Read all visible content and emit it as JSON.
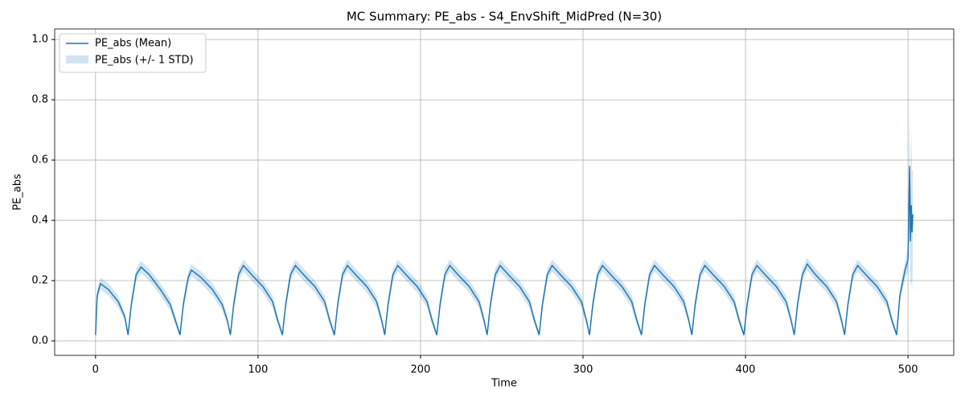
{
  "chart_data": {
    "type": "line",
    "title": "MC Summary: PE_abs - S4_EnvShift_MidPred (N=30)",
    "x_label": "Time",
    "y_label": "PE_abs",
    "x": [
      0,
      1,
      3,
      8,
      14,
      18,
      20,
      22,
      25,
      28,
      33,
      40,
      46,
      49,
      52,
      54,
      57,
      59,
      65,
      72,
      78,
      81,
      83,
      85,
      88,
      91,
      96,
      103,
      109,
      112,
      115,
      117,
      120,
      123,
      128,
      135,
      141,
      144,
      147,
      149,
      152,
      155,
      160,
      167,
      173,
      176,
      178,
      180,
      183,
      186,
      191,
      198,
      204,
      207,
      210,
      212,
      215,
      218,
      223,
      230,
      236,
      239,
      241,
      243,
      246,
      249,
      254,
      261,
      267,
      270,
      273,
      275,
      278,
      281,
      286,
      293,
      299,
      302,
      304,
      306,
      309,
      312,
      317,
      324,
      330,
      333,
      336,
      338,
      341,
      344,
      349,
      356,
      362,
      365,
      367,
      369,
      372,
      375,
      380,
      387,
      393,
      396,
      399,
      401,
      404,
      407,
      412,
      419,
      425,
      428,
      430,
      432,
      435,
      438,
      443,
      450,
      456,
      459,
      461,
      463,
      466,
      469,
      474,
      481,
      487,
      490,
      493,
      495,
      498,
      500,
      501,
      501.5,
      502,
      502.5,
      503
    ],
    "series": [
      {
        "name": "PE_abs (Mean)",
        "color": "#1f77b4",
        "values": [
          0.02,
          0.15,
          0.19,
          0.17,
          0.13,
          0.08,
          0.02,
          0.12,
          0.22,
          0.245,
          0.22,
          0.17,
          0.12,
          0.07,
          0.02,
          0.12,
          0.21,
          0.235,
          0.21,
          0.17,
          0.12,
          0.07,
          0.02,
          0.12,
          0.22,
          0.25,
          0.22,
          0.18,
          0.13,
          0.07,
          0.02,
          0.12,
          0.22,
          0.25,
          0.22,
          0.18,
          0.13,
          0.07,
          0.02,
          0.12,
          0.22,
          0.25,
          0.22,
          0.18,
          0.13,
          0.07,
          0.02,
          0.12,
          0.22,
          0.25,
          0.22,
          0.18,
          0.13,
          0.07,
          0.02,
          0.12,
          0.22,
          0.25,
          0.22,
          0.18,
          0.13,
          0.07,
          0.02,
          0.12,
          0.22,
          0.25,
          0.22,
          0.18,
          0.13,
          0.07,
          0.02,
          0.12,
          0.22,
          0.25,
          0.22,
          0.18,
          0.13,
          0.07,
          0.02,
          0.12,
          0.22,
          0.25,
          0.22,
          0.18,
          0.13,
          0.07,
          0.02,
          0.12,
          0.22,
          0.25,
          0.22,
          0.18,
          0.13,
          0.07,
          0.02,
          0.12,
          0.22,
          0.25,
          0.22,
          0.18,
          0.13,
          0.07,
          0.02,
          0.12,
          0.22,
          0.25,
          0.22,
          0.18,
          0.13,
          0.07,
          0.02,
          0.12,
          0.22,
          0.255,
          0.22,
          0.18,
          0.13,
          0.07,
          0.02,
          0.12,
          0.22,
          0.25,
          0.22,
          0.18,
          0.13,
          0.07,
          0.02,
          0.15,
          0.23,
          0.27,
          0.58,
          0.33,
          0.45,
          0.36,
          0.42
        ]
      },
      {
        "name": "PE_abs (+/- 1 STD)",
        "color": "#1f77b4",
        "values": [
          0.01,
          0.02,
          0.02,
          0.02,
          0.02,
          0.015,
          0.01,
          0.02,
          0.02,
          0.02,
          0.02,
          0.02,
          0.02,
          0.015,
          0.01,
          0.02,
          0.02,
          0.02,
          0.02,
          0.02,
          0.02,
          0.015,
          0.01,
          0.02,
          0.02,
          0.02,
          0.02,
          0.02,
          0.02,
          0.015,
          0.01,
          0.02,
          0.02,
          0.02,
          0.02,
          0.02,
          0.02,
          0.015,
          0.01,
          0.02,
          0.02,
          0.02,
          0.02,
          0.02,
          0.02,
          0.015,
          0.01,
          0.02,
          0.02,
          0.02,
          0.02,
          0.02,
          0.02,
          0.015,
          0.01,
          0.02,
          0.02,
          0.02,
          0.02,
          0.02,
          0.02,
          0.015,
          0.01,
          0.02,
          0.02,
          0.02,
          0.02,
          0.02,
          0.02,
          0.015,
          0.01,
          0.02,
          0.02,
          0.02,
          0.02,
          0.02,
          0.02,
          0.015,
          0.01,
          0.02,
          0.02,
          0.02,
          0.02,
          0.02,
          0.02,
          0.015,
          0.01,
          0.02,
          0.02,
          0.02,
          0.02,
          0.02,
          0.02,
          0.015,
          0.01,
          0.02,
          0.02,
          0.02,
          0.02,
          0.02,
          0.02,
          0.015,
          0.01,
          0.02,
          0.02,
          0.02,
          0.02,
          0.02,
          0.02,
          0.015,
          0.01,
          0.02,
          0.02,
          0.02,
          0.02,
          0.02,
          0.02,
          0.015,
          0.01,
          0.02,
          0.02,
          0.02,
          0.02,
          0.02,
          0.02,
          0.015,
          0.01,
          0.02,
          0.03,
          0.04,
          0.2,
          0.15,
          0.25,
          0.2,
          0.15
        ]
      }
    ],
    "xlim": [
      -25.15,
      528.15
    ],
    "xticks": [
      0,
      100,
      200,
      300,
      400,
      500
    ],
    "ylim": [
      -0.048,
      1.035
    ],
    "yticks": [
      {
        "value": 0,
        "label": "0.0"
      },
      {
        "value": 0.2,
        "label": "0.2"
      },
      {
        "value": 0.4,
        "label": "0.4"
      },
      {
        "value": 0.6,
        "label": "0.6"
      },
      {
        "value": 0.8,
        "label": "0.8"
      },
      {
        "value": 1,
        "label": "1.0"
      }
    ],
    "grid": true,
    "legend": "upper left"
  }
}
